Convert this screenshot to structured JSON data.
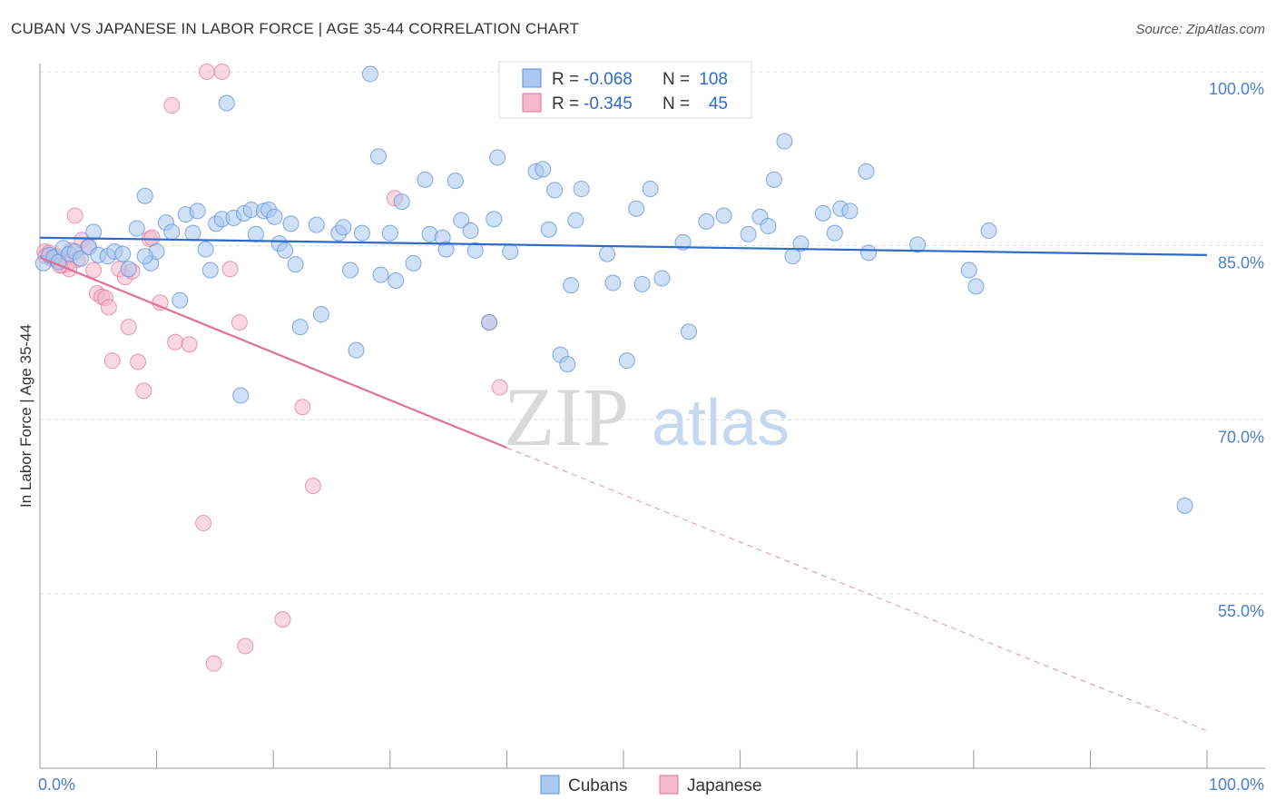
{
  "title": "CUBAN VS JAPANESE IN LABOR FORCE | AGE 35-44 CORRELATION CHART",
  "source": "Source: ZipAtlas.com",
  "colors": {
    "cubans": "#5b8fd8",
    "cubans_fill": "#aac8f0",
    "japanese": "#e07099",
    "japanese_fill": "#f4b8cc",
    "axis_label": "#4a7fd0"
  },
  "legend": {
    "r_label": "R =",
    "n_label": "N =",
    "cubans_r": "-0.068",
    "cubans_n": "108",
    "japanese_r": "-0.345",
    "japanese_n": "45"
  },
  "watermark": {
    "zip": "ZIP",
    "atlas": "atlas"
  },
  "chart_data": {
    "type": "scatter",
    "title": "CUBAN VS JAPANESE IN LABOR FORCE | AGE 35-44 CORRELATION CHART",
    "ylabel": "In Labor Force | Age 35-44",
    "xlabel": "",
    "xlim": [
      0,
      100
    ],
    "ylim": [
      40,
      101.5
    ],
    "x_tick_labels": [
      "0.0%",
      "100.0%"
    ],
    "y_ticks": [
      55,
      70,
      85,
      100
    ],
    "y_tick_labels": [
      "55.0%",
      "70.0%",
      "85.0%",
      "100.0%"
    ],
    "grid": "horizontal dashed",
    "legend_position": "top-center",
    "series": [
      {
        "name": "Cubans",
        "r": -0.068,
        "n": 108,
        "trend": {
          "x": [
            0,
            100
          ],
          "y": [
            85.7,
            84.2
          ]
        },
        "points": [
          [
            0.3,
            83.5
          ],
          [
            0.8,
            84.2
          ],
          [
            1.2,
            84.0
          ],
          [
            1.6,
            83.6
          ],
          [
            2.0,
            84.8
          ],
          [
            2.5,
            84.3
          ],
          [
            3.0,
            84.5
          ],
          [
            3.5,
            83.9
          ],
          [
            4.2,
            84.9
          ],
          [
            4.6,
            86.2
          ],
          [
            5.0,
            84.2
          ],
          [
            5.8,
            84.1
          ],
          [
            6.4,
            84.5
          ],
          [
            7.1,
            84.3
          ],
          [
            7.6,
            83.0
          ],
          [
            8.3,
            86.5
          ],
          [
            9.0,
            89.3
          ],
          [
            9.5,
            83.5
          ],
          [
            10.0,
            84.5
          ],
          [
            10.8,
            87.0
          ],
          [
            11.3,
            86.2
          ],
          [
            12.0,
            80.3
          ],
          [
            12.5,
            87.7
          ],
          [
            13.1,
            86.1
          ],
          [
            13.5,
            88.0
          ],
          [
            14.2,
            84.7
          ],
          [
            14.6,
            82.9
          ],
          [
            15.1,
            86.9
          ],
          [
            15.6,
            87.3
          ],
          [
            16.0,
            97.3
          ],
          [
            16.6,
            87.4
          ],
          [
            17.2,
            72.1
          ],
          [
            17.5,
            87.8
          ],
          [
            18.1,
            88.1
          ],
          [
            18.5,
            86.0
          ],
          [
            19.2,
            88.0
          ],
          [
            19.6,
            88.1
          ],
          [
            20.1,
            87.5
          ],
          [
            20.5,
            85.2
          ],
          [
            21.0,
            84.6
          ],
          [
            21.5,
            86.9
          ],
          [
            21.9,
            83.4
          ],
          [
            22.3,
            78.0
          ],
          [
            23.7,
            86.8
          ],
          [
            24.1,
            79.1
          ],
          [
            25.6,
            86.1
          ],
          [
            26.0,
            86.6
          ],
          [
            26.6,
            82.9
          ],
          [
            27.1,
            76.0
          ],
          [
            27.6,
            86.1
          ],
          [
            28.3,
            99.8
          ],
          [
            29.0,
            92.7
          ],
          [
            29.2,
            82.5
          ],
          [
            30.0,
            86.1
          ],
          [
            30.5,
            82.0
          ],
          [
            31.0,
            88.8
          ],
          [
            32.0,
            83.5
          ],
          [
            33.0,
            90.7
          ],
          [
            33.4,
            86.0
          ],
          [
            34.5,
            85.7
          ],
          [
            34.8,
            84.7
          ],
          [
            35.6,
            90.6
          ],
          [
            36.1,
            87.2
          ],
          [
            36.9,
            86.3
          ],
          [
            37.3,
            84.6
          ],
          [
            38.5,
            78.4
          ],
          [
            38.9,
            87.3
          ],
          [
            39.2,
            92.6
          ],
          [
            40.3,
            84.5
          ],
          [
            42.5,
            91.4
          ],
          [
            43.1,
            91.6
          ],
          [
            43.6,
            86.4
          ],
          [
            44.1,
            89.8
          ],
          [
            44.6,
            75.6
          ],
          [
            45.2,
            74.8
          ],
          [
            45.5,
            81.6
          ],
          [
            45.9,
            87.2
          ],
          [
            46.4,
            89.9
          ],
          [
            48.6,
            84.3
          ],
          [
            49.1,
            81.8
          ],
          [
            50.3,
            75.1
          ],
          [
            51.1,
            88.2
          ],
          [
            51.6,
            81.7
          ],
          [
            52.3,
            89.9
          ],
          [
            53.3,
            82.2
          ],
          [
            55.1,
            85.3
          ],
          [
            55.6,
            77.6
          ],
          [
            57.1,
            87.1
          ],
          [
            58.6,
            87.6
          ],
          [
            60.7,
            86.0
          ],
          [
            61.7,
            87.5
          ],
          [
            62.4,
            86.7
          ],
          [
            62.9,
            90.7
          ],
          [
            63.8,
            94.0
          ],
          [
            64.5,
            84.1
          ],
          [
            65.2,
            85.2
          ],
          [
            67.1,
            87.8
          ],
          [
            68.1,
            86.1
          ],
          [
            68.6,
            88.2
          ],
          [
            69.4,
            88.0
          ],
          [
            70.8,
            91.4
          ],
          [
            71.0,
            84.4
          ],
          [
            75.2,
            85.1
          ],
          [
            79.6,
            82.9
          ],
          [
            80.2,
            81.5
          ],
          [
            81.3,
            86.3
          ],
          [
            98.1,
            62.6
          ],
          [
            9.0,
            84.1
          ]
        ]
      },
      {
        "name": "Japanese",
        "r": -0.345,
        "n": 45,
        "trend": {
          "x": [
            0,
            40
          ],
          "y": [
            84.0,
            67.6
          ]
        },
        "trend_dashed": {
          "x": [
            40,
            100
          ],
          "y": [
            67.6,
            43.2
          ]
        },
        "points": [
          [
            0.4,
            84.5
          ],
          [
            0.8,
            84.4
          ],
          [
            1.0,
            83.9
          ],
          [
            1.4,
            84.1
          ],
          [
            1.9,
            83.3
          ],
          [
            2.3,
            83.4
          ],
          [
            2.7,
            84.6
          ],
          [
            3.0,
            87.6
          ],
          [
            3.2,
            83.8
          ],
          [
            3.6,
            85.5
          ],
          [
            4.1,
            84.9
          ],
          [
            4.6,
            82.9
          ],
          [
            4.9,
            80.9
          ],
          [
            5.3,
            80.6
          ],
          [
            5.6,
            80.5
          ],
          [
            5.9,
            79.7
          ],
          [
            6.2,
            75.1
          ],
          [
            6.8,
            83.0
          ],
          [
            7.3,
            82.3
          ],
          [
            7.6,
            78.0
          ],
          [
            7.9,
            82.8
          ],
          [
            8.4,
            75.0
          ],
          [
            8.9,
            72.5
          ],
          [
            9.4,
            85.6
          ],
          [
            9.6,
            85.7
          ],
          [
            10.3,
            80.1
          ],
          [
            11.3,
            97.1
          ],
          [
            11.6,
            76.7
          ],
          [
            12.8,
            76.5
          ],
          [
            14.0,
            61.1
          ],
          [
            14.3,
            100.0
          ],
          [
            14.9,
            49.0
          ],
          [
            15.6,
            100.0
          ],
          [
            16.3,
            83.0
          ],
          [
            17.1,
            78.4
          ],
          [
            17.6,
            50.5
          ],
          [
            20.8,
            52.8
          ],
          [
            22.5,
            71.1
          ],
          [
            23.4,
            64.3
          ],
          [
            30.4,
            89.1
          ],
          [
            38.5,
            78.4
          ],
          [
            39.4,
            72.8
          ],
          [
            2.5,
            83.0
          ],
          [
            1.7,
            83.3
          ],
          [
            0.5,
            84.1
          ]
        ]
      }
    ]
  },
  "bottom_legend": {
    "cubans": "Cubans",
    "japanese": "Japanese"
  }
}
